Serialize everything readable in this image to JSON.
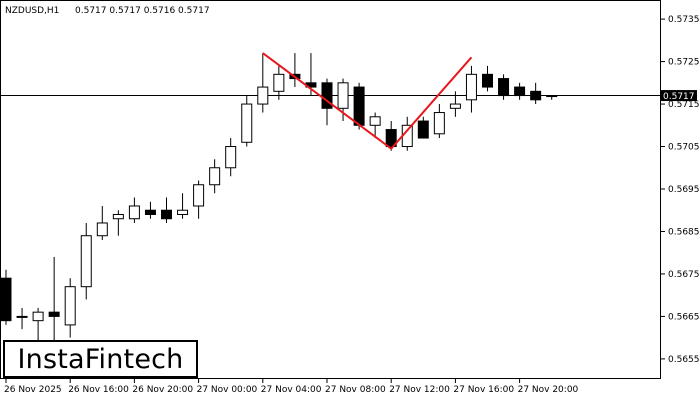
{
  "header": {
    "symbol": "NZDUSD,H1",
    "ohlc": "0.5717 0.5717 0.5716 0.5717"
  },
  "logo": {
    "text": "InstaFintech"
  },
  "current_price_label": "0.5717",
  "colors": {
    "pattern_line": "#e8171c",
    "bull_fill": "#ffffff",
    "bear_fill": "#000000",
    "axis": "#000000"
  },
  "chart_data": {
    "type": "candlestick",
    "title": "NZDUSD,H1",
    "ylim": [
      0.56505,
      0.57395
    ],
    "y_ticks": [
      "0.5735",
      "0.5725",
      "0.5715",
      "0.5705",
      "0.5695",
      "0.5685",
      "0.5675",
      "0.5665",
      "0.5655"
    ],
    "x_tick_labels": [
      "26 Nov 2025",
      "26 Nov 16:00",
      "26 Nov 20:00",
      "27 Nov 00:00",
      "27 Nov 04:00",
      "27 Nov 08:00",
      "27 Nov 12:00",
      "27 Nov 16:00",
      "27 Nov 20:00"
    ],
    "x_tick_candle_index": [
      0,
      4,
      8,
      12,
      16,
      20,
      24,
      28,
      32
    ],
    "current_price": 0.5717,
    "pattern": {
      "name": "Double Top",
      "points": [
        {
          "candle": 16,
          "price": 0.5727
        },
        {
          "candle": 24,
          "price": 0.57045
        },
        {
          "candle": 29,
          "price": 0.5726
        }
      ]
    },
    "candles": [
      {
        "o": 0.5674,
        "h": 0.5676,
        "l": 0.5663,
        "c": 0.5664
      },
      {
        "o": 0.5665,
        "h": 0.5667,
        "l": 0.5662,
        "c": 0.5665
      },
      {
        "o": 0.5664,
        "h": 0.5667,
        "l": 0.5659,
        "c": 0.5666
      },
      {
        "o": 0.5666,
        "h": 0.5679,
        "l": 0.5659,
        "c": 0.5665
      },
      {
        "o": 0.5663,
        "h": 0.5674,
        "l": 0.566,
        "c": 0.5672
      },
      {
        "o": 0.5672,
        "h": 0.5687,
        "l": 0.5669,
        "c": 0.5684
      },
      {
        "o": 0.5684,
        "h": 0.5691,
        "l": 0.5683,
        "c": 0.5687
      },
      {
        "o": 0.5688,
        "h": 0.569,
        "l": 0.5684,
        "c": 0.5689
      },
      {
        "o": 0.5688,
        "h": 0.5693,
        "l": 0.5687,
        "c": 0.5691
      },
      {
        "o": 0.569,
        "h": 0.5692,
        "l": 0.5688,
        "c": 0.5689
      },
      {
        "o": 0.569,
        "h": 0.5693,
        "l": 0.5687,
        "c": 0.5688
      },
      {
        "o": 0.5689,
        "h": 0.5694,
        "l": 0.5688,
        "c": 0.569
      },
      {
        "o": 0.5691,
        "h": 0.5697,
        "l": 0.5688,
        "c": 0.5696
      },
      {
        "o": 0.5696,
        "h": 0.5702,
        "l": 0.5694,
        "c": 0.57
      },
      {
        "o": 0.57,
        "h": 0.5707,
        "l": 0.5698,
        "c": 0.5705
      },
      {
        "o": 0.5706,
        "h": 0.5717,
        "l": 0.5705,
        "c": 0.5715
      },
      {
        "o": 0.5715,
        "h": 0.5727,
        "l": 0.5713,
        "c": 0.5719
      },
      {
        "o": 0.5718,
        "h": 0.5724,
        "l": 0.5716,
        "c": 0.5722
      },
      {
        "o": 0.5722,
        "h": 0.5727,
        "l": 0.5719,
        "c": 0.5721
      },
      {
        "o": 0.572,
        "h": 0.5727,
        "l": 0.5717,
        "c": 0.5719
      },
      {
        "o": 0.572,
        "h": 0.5721,
        "l": 0.571,
        "c": 0.5714
      },
      {
        "o": 0.5714,
        "h": 0.5721,
        "l": 0.5711,
        "c": 0.572
      },
      {
        "o": 0.5719,
        "h": 0.572,
        "l": 0.5709,
        "c": 0.571
      },
      {
        "o": 0.571,
        "h": 0.5713,
        "l": 0.5707,
        "c": 0.5712
      },
      {
        "o": 0.5709,
        "h": 0.5711,
        "l": 0.5704,
        "c": 0.5705
      },
      {
        "o": 0.5705,
        "h": 0.5712,
        "l": 0.5704,
        "c": 0.571
      },
      {
        "o": 0.5711,
        "h": 0.5712,
        "l": 0.5707,
        "c": 0.5707
      },
      {
        "o": 0.5708,
        "h": 0.5715,
        "l": 0.5707,
        "c": 0.5713
      },
      {
        "o": 0.5714,
        "h": 0.5718,
        "l": 0.5712,
        "c": 0.5715
      },
      {
        "o": 0.5716,
        "h": 0.5724,
        "l": 0.5713,
        "c": 0.5722
      },
      {
        "o": 0.5722,
        "h": 0.5724,
        "l": 0.5718,
        "c": 0.5719
      },
      {
        "o": 0.5721,
        "h": 0.5722,
        "l": 0.5716,
        "c": 0.5717
      },
      {
        "o": 0.5719,
        "h": 0.572,
        "l": 0.5716,
        "c": 0.5717
      },
      {
        "o": 0.5718,
        "h": 0.572,
        "l": 0.5715,
        "c": 0.5716
      },
      {
        "o": 0.5717,
        "h": 0.5717,
        "l": 0.5716,
        "c": 0.5717
      }
    ]
  }
}
